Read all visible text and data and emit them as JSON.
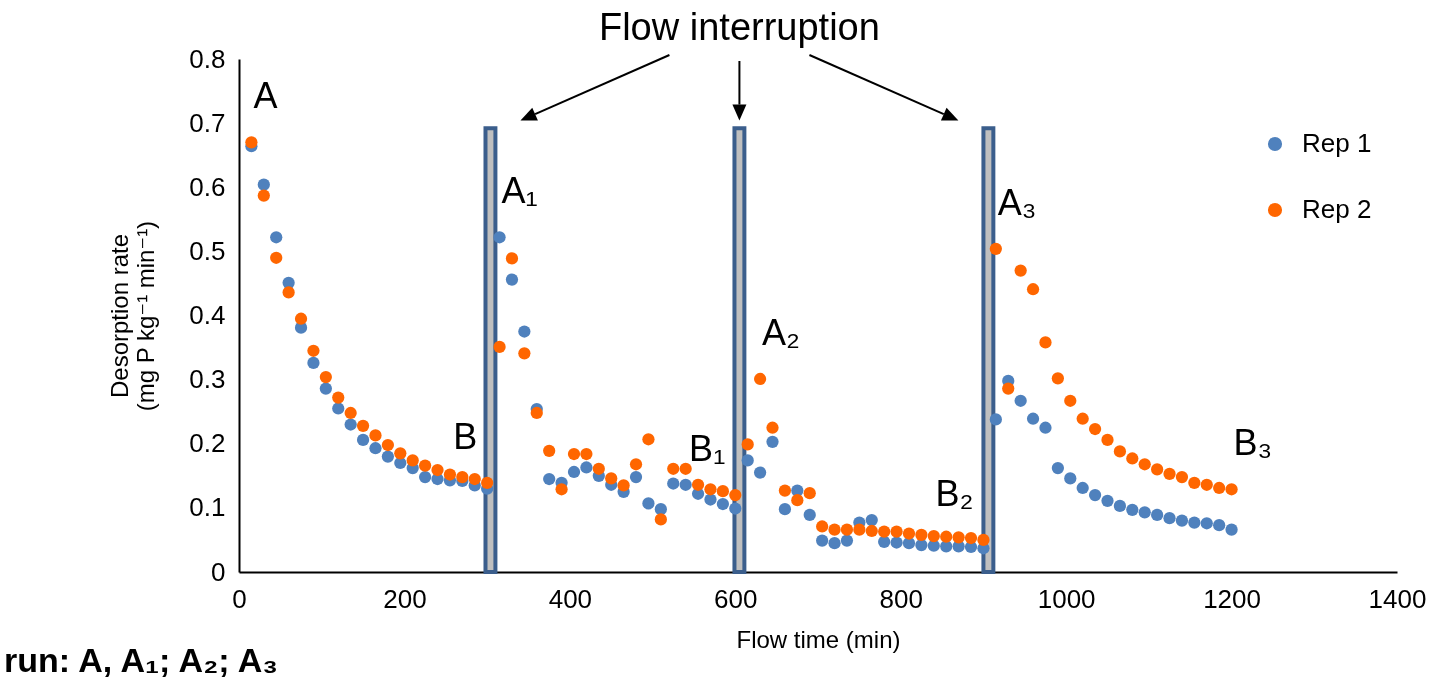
{
  "chart_data": {
    "type": "scatter",
    "xlabel": "Flow time (min)",
    "ylabel": "Desorption rate\n(mg P kg⁻¹ min⁻¹)",
    "x": [
      15,
      30,
      45,
      60,
      75,
      90,
      105,
      120,
      135,
      150,
      165,
      180,
      195,
      210,
      225,
      240,
      255,
      270,
      285,
      300,
      315,
      330,
      345,
      360,
      375,
      390,
      405,
      420,
      435,
      450,
      465,
      480,
      495,
      510,
      525,
      540,
      555,
      570,
      585,
      600,
      615,
      630,
      645,
      660,
      675,
      690,
      705,
      720,
      735,
      750,
      765,
      780,
      795,
      810,
      825,
      840,
      855,
      870,
      885,
      900,
      915,
      930,
      945,
      960,
      975,
      990,
      1005,
      1020,
      1035,
      1050,
      1065,
      1080,
      1095,
      1110,
      1125,
      1140,
      1155,
      1170,
      1185,
      1200
    ],
    "series": [
      {
        "name": "Rep 1",
        "color": "#4f81bd",
        "values": [
          0.664,
          0.604,
          0.522,
          0.451,
          0.381,
          0.326,
          0.286,
          0.255,
          0.23,
          0.206,
          0.193,
          0.18,
          0.17,
          0.162,
          0.148,
          0.145,
          0.143,
          0.142,
          0.135,
          0.13,
          0.522,
          0.456,
          0.375,
          0.254,
          0.145,
          0.139,
          0.156,
          0.163,
          0.15,
          0.136,
          0.125,
          0.148,
          0.107,
          0.098,
          0.138,
          0.136,
          0.122,
          0.113,
          0.106,
          0.099,
          0.174,
          0.155,
          0.203,
          0.098,
          0.127,
          0.089,
          0.049,
          0.045,
          0.049,
          0.077,
          0.081,
          0.047,
          0.046,
          0.045,
          0.042,
          0.041,
          0.04,
          0.04,
          0.039,
          0.037,
          0.238,
          0.298,
          0.267,
          0.239,
          0.225,
          0.162,
          0.146,
          0.131,
          0.12,
          0.111,
          0.103,
          0.097,
          0.093,
          0.089,
          0.084,
          0.08,
          0.077,
          0.076,
          0.073,
          0.066
        ]
      },
      {
        "name": "Rep 2",
        "color": "#ff6600",
        "values": [
          0.67,
          0.587,
          0.49,
          0.436,
          0.395,
          0.345,
          0.304,
          0.272,
          0.248,
          0.228,
          0.213,
          0.198,
          0.185,
          0.174,
          0.166,
          0.159,
          0.152,
          0.148,
          0.145,
          0.139,
          0.351,
          0.489,
          0.341,
          0.248,
          0.189,
          0.129,
          0.184,
          0.184,
          0.161,
          0.146,
          0.135,
          0.168,
          0.207,
          0.082,
          0.161,
          0.161,
          0.136,
          0.129,
          0.126,
          0.12,
          0.199,
          0.301,
          0.225,
          0.127,
          0.112,
          0.123,
          0.071,
          0.066,
          0.066,
          0.066,
          0.064,
          0.063,
          0.063,
          0.06,
          0.058,
          0.056,
          0.055,
          0.054,
          0.053,
          0.05,
          0.504,
          0.286,
          0.47,
          0.441,
          0.358,
          0.302,
          0.267,
          0.239,
          0.223,
          0.206,
          0.188,
          0.177,
          0.168,
          0.16,
          0.153,
          0.148,
          0.139,
          0.136,
          0.131,
          0.129
        ]
      }
    ],
    "xlim": [
      0,
      1400
    ],
    "xticks": [
      0,
      200,
      400,
      600,
      800,
      1000,
      1200,
      1400
    ],
    "ylim": [
      0,
      0.8
    ],
    "yticks": [
      0,
      0.1,
      0.2,
      0.3,
      0.4,
      0.5,
      0.6,
      0.7,
      0.8
    ],
    "bands": [
      {
        "axis": "x",
        "from": 298,
        "to": 310,
        "color": "#bfbfbf"
      },
      {
        "axis": "x",
        "from": 599,
        "to": 611,
        "color": "#bfbfbf"
      },
      {
        "axis": "x",
        "from": 900,
        "to": 912,
        "color": "#bfbfbf"
      }
    ],
    "annotations": [
      "Flow interruption",
      "run: A, A₁; A₂; A₃",
      {
        "text": "A",
        "x": 15,
        "y": 0.67
      },
      {
        "text": "B",
        "x": 300,
        "y": 0.139
      },
      {
        "text": "A₁",
        "x": 315,
        "y": 0.522
      },
      {
        "text": "B₁",
        "x": 600,
        "y": 0.12
      },
      {
        "text": "A₂",
        "x": 630,
        "y": 0.301
      },
      {
        "text": "B₂",
        "x": 900,
        "y": 0.05
      },
      {
        "text": "A₃",
        "x": 915,
        "y": 0.504
      },
      {
        "text": "B₃",
        "x": 1200,
        "y": 0.129
      }
    ],
    "marker": "circle",
    "legend": "top right",
    "grid": false
  }
}
